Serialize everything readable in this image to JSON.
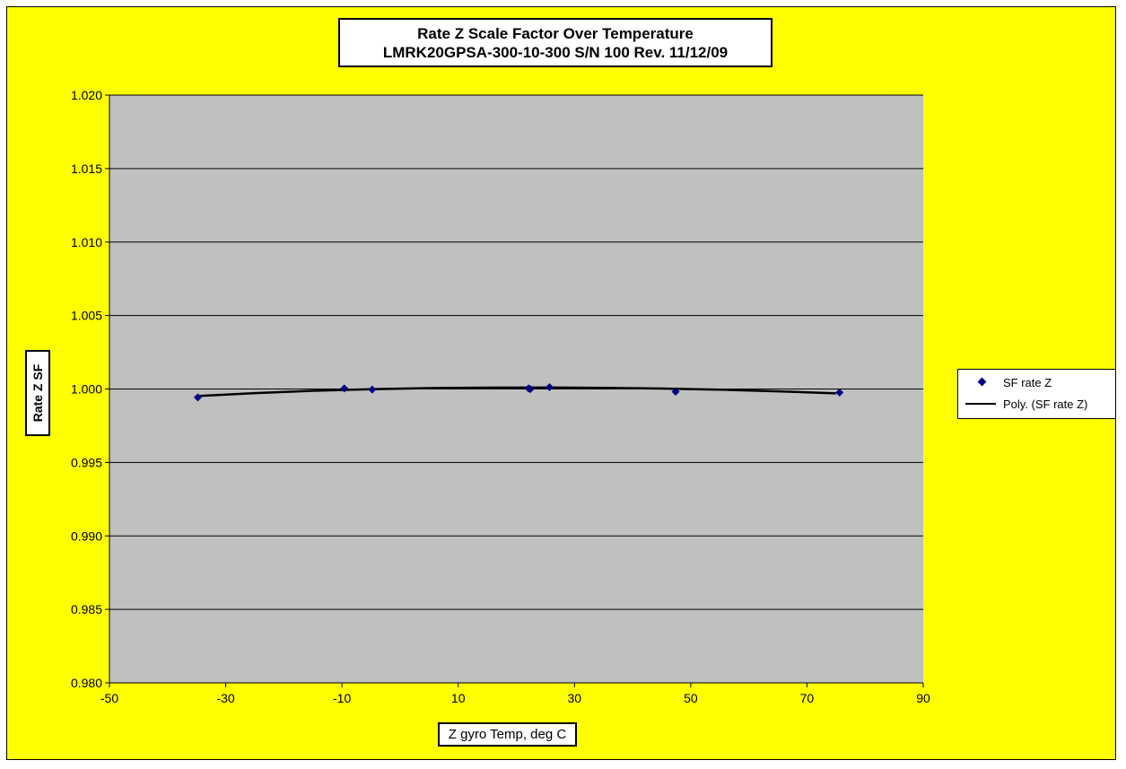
{
  "chart_data": {
    "type": "scatter",
    "title": [
      "Rate Z Scale Factor Over Temperature",
      "LMRK20GPSA-300-10-300 S/N 100 Rev. 11/12/09"
    ],
    "xlabel": "Z gyro Temp, deg C",
    "ylabel": "Rate Z SF",
    "xlim": [
      -50,
      90
    ],
    "ylim": [
      0.98,
      1.02
    ],
    "x_ticks": [
      "-50",
      "-30",
      "-10",
      "10",
      "30",
      "50",
      "70",
      "90"
    ],
    "y_ticks": [
      "0.980",
      "0.985",
      "0.990",
      "0.995",
      "1.000",
      "1.005",
      "1.010",
      "1.015",
      "1.020"
    ],
    "grid": "horizontal",
    "legend_position": "right",
    "colors": {
      "chart_bg": "#ffff00",
      "plot_bg": "#c0c0c0",
      "marker": "#000080",
      "trend": "#000000"
    },
    "series": [
      {
        "name": "SF rate Z",
        "kind": "scatter",
        "x": [
          -34.8,
          -9.6,
          -4.8,
          22.1,
          22.4,
          25.7,
          47.4,
          75.6
        ],
        "y": [
          0.99943,
          1.00004,
          0.99996,
          1.00004,
          0.99999,
          1.00012,
          0.99982,
          0.99976
        ]
      },
      {
        "name": "Poly. (SF rate Z)",
        "kind": "trendline",
        "x": [
          -35,
          -25,
          -15,
          -5,
          5,
          15,
          25,
          35,
          45,
          55,
          65,
          75
        ],
        "y": [
          0.99952,
          0.99972,
          0.99988,
          0.99999,
          1.00006,
          1.00009,
          1.0001,
          1.00008,
          1.00003,
          0.99995,
          0.99984,
          0.9997
        ]
      }
    ]
  }
}
